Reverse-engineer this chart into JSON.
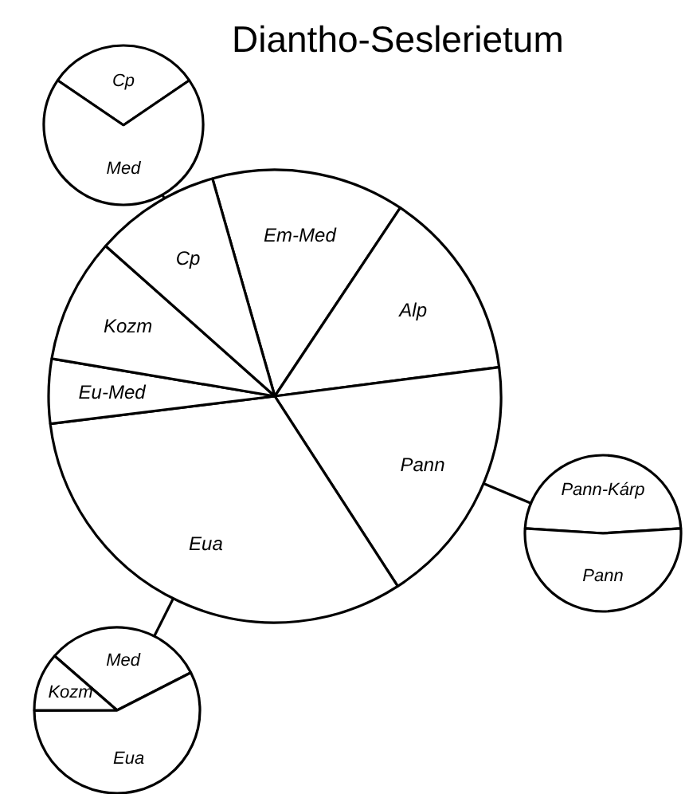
{
  "chart_data": [
    {
      "type": "pie",
      "title": "Diantho-Seslerietum",
      "categories": [
        "Em-Med",
        "Alp",
        "Pann",
        "Eua",
        "Eu-Med",
        "Kozm",
        "Cp"
      ],
      "values": [
        13.8,
        13.6,
        17.9,
        32.2,
        4.6,
        8.9,
        9.0
      ],
      "colors": [
        "#ffffff",
        "#ffffff",
        "#ffffff",
        "#ffffff",
        "#ffffff",
        "#ffffff",
        "#ffffff"
      ]
    },
    {
      "type": "pie",
      "categories": [
        "Cp",
        "Med"
      ],
      "values": [
        31,
        69
      ],
      "colors": [
        "#ffffff",
        "#ffffff"
      ]
    },
    {
      "type": "pie",
      "categories": [
        "Pann-Kárp",
        "Pann"
      ],
      "values": [
        48,
        52
      ],
      "colors": [
        "#ffffff",
        "#ffffff"
      ]
    },
    {
      "type": "pie",
      "categories": [
        "Med",
        "Eua",
        "Kozm"
      ],
      "values": [
        31.1,
        57.5,
        11.4
      ],
      "colors": [
        "#ffffff",
        "#ffffff",
        "#ffffff"
      ]
    }
  ]
}
